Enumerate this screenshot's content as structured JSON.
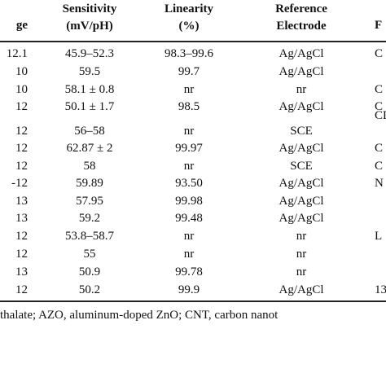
{
  "table": {
    "header": [
      "ge",
      "Sensitivity (mV/pH)",
      "Linearity (%)",
      "Reference Electrode",
      "F"
    ],
    "header_lines": [
      [
        "ge"
      ],
      [
        "Sensitivity",
        "(mV/pH)"
      ],
      [
        "Linearity",
        "(%)"
      ],
      [
        "Reference",
        "Electrode"
      ],
      [
        "F"
      ]
    ],
    "rows": [
      [
        "12.1",
        "45.9–52.3",
        "98.3–99.6",
        "Ag/AgCl",
        "C"
      ],
      [
        "10",
        "59.5",
        "99.7",
        "Ag/AgCl",
        null
      ],
      [
        "10",
        "58.1 ± 0.8",
        "nr",
        "nr",
        "C"
      ],
      [
        "12",
        "50.1 ± 1.7",
        "98.5",
        "Ag/AgCl",
        "C"
      ],
      [
        "12",
        "56–58",
        "nr",
        "SCE",
        "CD"
      ],
      [
        "12",
        "62.87 ± 2",
        "99.97",
        "Ag/AgCl",
        "C"
      ],
      [
        "12",
        "58",
        "nr",
        "SCE",
        "C"
      ],
      [
        "-12",
        "59.89",
        "93.50",
        "Ag/AgCl",
        "N"
      ],
      [
        "13",
        "57.95",
        "99.98",
        "Ag/AgCl",
        null
      ],
      [
        "13",
        "59.2",
        "99.48",
        "Ag/AgCl",
        null
      ],
      [
        "12",
        "53.8–58.7",
        "nr",
        "nr",
        "L"
      ],
      [
        "12",
        "55",
        "nr",
        "nr",
        null
      ],
      [
        "13",
        "50.9",
        "99.78",
        "nr",
        null
      ],
      [
        "12",
        "50.2",
        "99.9",
        "Ag/AgCl",
        "13-"
      ]
    ],
    "footnote": "thalate; AZO, aluminum-doped ZnO; CNT, carbon nanot"
  }
}
